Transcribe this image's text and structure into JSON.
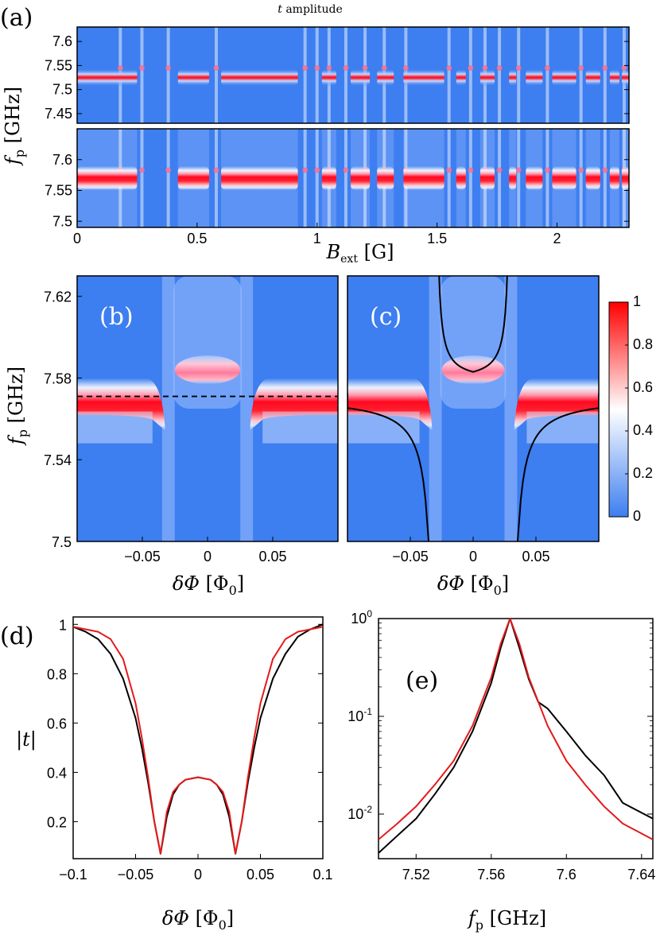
{
  "figure": {
    "title_prefix": "t",
    "title_suffix": " amplitude"
  },
  "chart_data": [
    {
      "panel": "(a)",
      "type": "heatmap",
      "subplots": [
        {
          "yticks": [
            "7.6",
            "7.55",
            "7.5",
            "7.45"
          ],
          "ylim": [
            7.43,
            7.63
          ],
          "resonance_GHz": 7.525
        },
        {
          "yticks": [
            "7.6",
            "7.55",
            "7.5"
          ],
          "ylim": [
            7.49,
            7.65
          ],
          "resonance_GHz": 7.57
        }
      ],
      "xticks": [
        "0",
        "0.5",
        "1",
        "1.5",
        "2"
      ],
      "xlim": [
        0,
        2.3
      ],
      "xlabel": {
        "main": "B",
        "sub": "ext",
        "unit": " [G]"
      },
      "ylabel": {
        "main": "f",
        "sub": "p",
        "unit": " [GHz]"
      },
      "dip_positions_G": [
        0.18,
        0.27,
        0.38,
        0.58,
        0.95,
        1.0,
        1.05,
        1.12,
        1.2,
        1.28,
        1.37,
        1.55,
        1.64,
        1.7,
        1.76,
        1.84,
        1.96,
        2.1,
        2.2,
        2.28
      ]
    },
    {
      "panel": "(b)",
      "type": "heatmap",
      "xticks": [
        "−0.05",
        "0",
        "0.05"
      ],
      "xlim": [
        -0.1,
        0.1
      ],
      "yticks": [
        "7.62",
        "7.58",
        "7.54",
        "7.5"
      ],
      "ylim": [
        7.5,
        7.63
      ],
      "xlabel": {
        "main": "δΦ",
        "unit": " [Φ",
        "sub": "0",
        "close": "]"
      },
      "ylabel": {
        "main": "f",
        "sub": "p",
        "unit": " [GHz]"
      },
      "dashed_line_GHz": 7.571
    },
    {
      "panel": "(c)",
      "type": "heatmap",
      "xticks": [
        "−0.05",
        "0",
        "0.05"
      ],
      "xlim": [
        -0.1,
        0.1
      ],
      "xlabel": {
        "main": "δΦ",
        "unit": " [Φ",
        "sub": "0",
        "close": "]"
      },
      "colorbar_ticks": [
        "1",
        "0.8",
        "0.6",
        "0.4",
        "0.2",
        "0"
      ],
      "colorbar_range": [
        0,
        1
      ],
      "colors": {
        "low": "#3d7ef0",
        "mid": "#ffffff",
        "high": "#ff0000"
      }
    },
    {
      "panel": "(d)",
      "type": "line",
      "xticks": [
        "−0.1",
        "−0.05",
        "0",
        "0.05",
        "0.1"
      ],
      "xlim": [
        -0.1,
        0.1
      ],
      "yticks": [
        "1",
        "0.8",
        "0.6",
        "0.4",
        "0.2"
      ],
      "ylim": [
        0.05,
        1.03
      ],
      "xlabel": {
        "main": "δΦ",
        "unit": " [Φ",
        "sub": "0",
        "close": "]"
      },
      "ylabel": "|t|",
      "series": [
        {
          "color": "#000000",
          "x": [
            -0.1,
            -0.09,
            -0.08,
            -0.07,
            -0.06,
            -0.05,
            -0.045,
            -0.04,
            -0.035,
            -0.03,
            -0.025,
            -0.02,
            -0.015,
            -0.01,
            0,
            0.01,
            0.015,
            0.02,
            0.025,
            0.03,
            0.035,
            0.04,
            0.045,
            0.05,
            0.06,
            0.07,
            0.08,
            0.09,
            0.1
          ],
          "y": [
            0.99,
            0.97,
            0.94,
            0.88,
            0.78,
            0.62,
            0.5,
            0.36,
            0.2,
            0.07,
            0.22,
            0.31,
            0.35,
            0.37,
            0.38,
            0.37,
            0.35,
            0.31,
            0.22,
            0.07,
            0.2,
            0.36,
            0.5,
            0.62,
            0.78,
            0.88,
            0.95,
            0.98,
            1.0
          ]
        },
        {
          "color": "#e41a1c",
          "x": [
            -0.1,
            -0.09,
            -0.08,
            -0.07,
            -0.06,
            -0.05,
            -0.045,
            -0.04,
            -0.035,
            -0.03,
            -0.025,
            -0.02,
            -0.015,
            -0.01,
            0,
            0.01,
            0.015,
            0.02,
            0.025,
            0.03,
            0.035,
            0.04,
            0.045,
            0.05,
            0.06,
            0.07,
            0.08,
            0.09,
            0.1
          ],
          "y": [
            0.99,
            0.98,
            0.97,
            0.94,
            0.86,
            0.68,
            0.54,
            0.38,
            0.2,
            0.07,
            0.24,
            0.32,
            0.35,
            0.37,
            0.38,
            0.37,
            0.35,
            0.32,
            0.24,
            0.07,
            0.2,
            0.38,
            0.54,
            0.68,
            0.86,
            0.94,
            0.97,
            0.98,
            0.99
          ]
        }
      ]
    },
    {
      "panel": "(e)",
      "type": "line",
      "yscale": "log",
      "xticks": [
        "7.52",
        "7.56",
        "7.6",
        "7.64"
      ],
      "xlim": [
        7.5,
        7.646
      ],
      "ylim": [
        0.0035,
        1.0
      ],
      "yticks": [
        {
          "base": "10",
          "exp": "0"
        },
        {
          "base": "10",
          "exp": "-1"
        },
        {
          "base": "10",
          "exp": "-2"
        }
      ],
      "xlabel": {
        "main": "f",
        "sub": "p",
        "unit": " [GHz]"
      },
      "series": [
        {
          "color": "#000000",
          "x": [
            7.5,
            7.51,
            7.52,
            7.53,
            7.54,
            7.55,
            7.56,
            7.565,
            7.57,
            7.575,
            7.58,
            7.585,
            7.59,
            7.6,
            7.61,
            7.62,
            7.63,
            7.646
          ],
          "y": [
            0.004,
            0.006,
            0.009,
            0.016,
            0.03,
            0.07,
            0.22,
            0.5,
            1.0,
            0.5,
            0.24,
            0.14,
            0.12,
            0.07,
            0.04,
            0.025,
            0.013,
            0.009
          ]
        },
        {
          "color": "#e41a1c",
          "x": [
            7.5,
            7.51,
            7.52,
            7.53,
            7.54,
            7.55,
            7.56,
            7.565,
            7.57,
            7.575,
            7.58,
            7.59,
            7.6,
            7.61,
            7.62,
            7.63,
            7.646
          ],
          "y": [
            0.0055,
            0.008,
            0.012,
            0.02,
            0.035,
            0.08,
            0.25,
            0.55,
            1.0,
            0.55,
            0.25,
            0.08,
            0.035,
            0.02,
            0.012,
            0.008,
            0.0055
          ]
        }
      ]
    }
  ]
}
